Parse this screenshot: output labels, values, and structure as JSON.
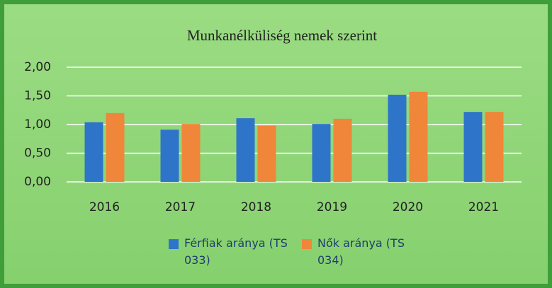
{
  "chart_data": {
    "type": "bar",
    "title": "Munkanélküliség nemek szerint",
    "categories": [
      "2016",
      "2017",
      "2018",
      "2019",
      "2020",
      "2021"
    ],
    "series": [
      {
        "name": "Férfiak aránya (TS 033)",
        "color": "#2e75c9",
        "values": [
          1.04,
          0.91,
          1.11,
          1.01,
          1.52,
          1.22
        ]
      },
      {
        "name": "Nők aránya (TS 034)",
        "color": "#f0863a",
        "values": [
          1.2,
          1.01,
          0.98,
          1.1,
          1.57,
          1.22
        ]
      }
    ],
    "ylim": [
      0,
      2
    ],
    "yticks": [
      {
        "value": 0,
        "label": "0,00"
      },
      {
        "value": 0.5,
        "label": "0,50"
      },
      {
        "value": 1,
        "label": "1,00"
      },
      {
        "value": 1.5,
        "label": "1,50"
      },
      {
        "value": 2,
        "label": "2,00"
      }
    ],
    "grid": true,
    "legend": "bottom"
  }
}
